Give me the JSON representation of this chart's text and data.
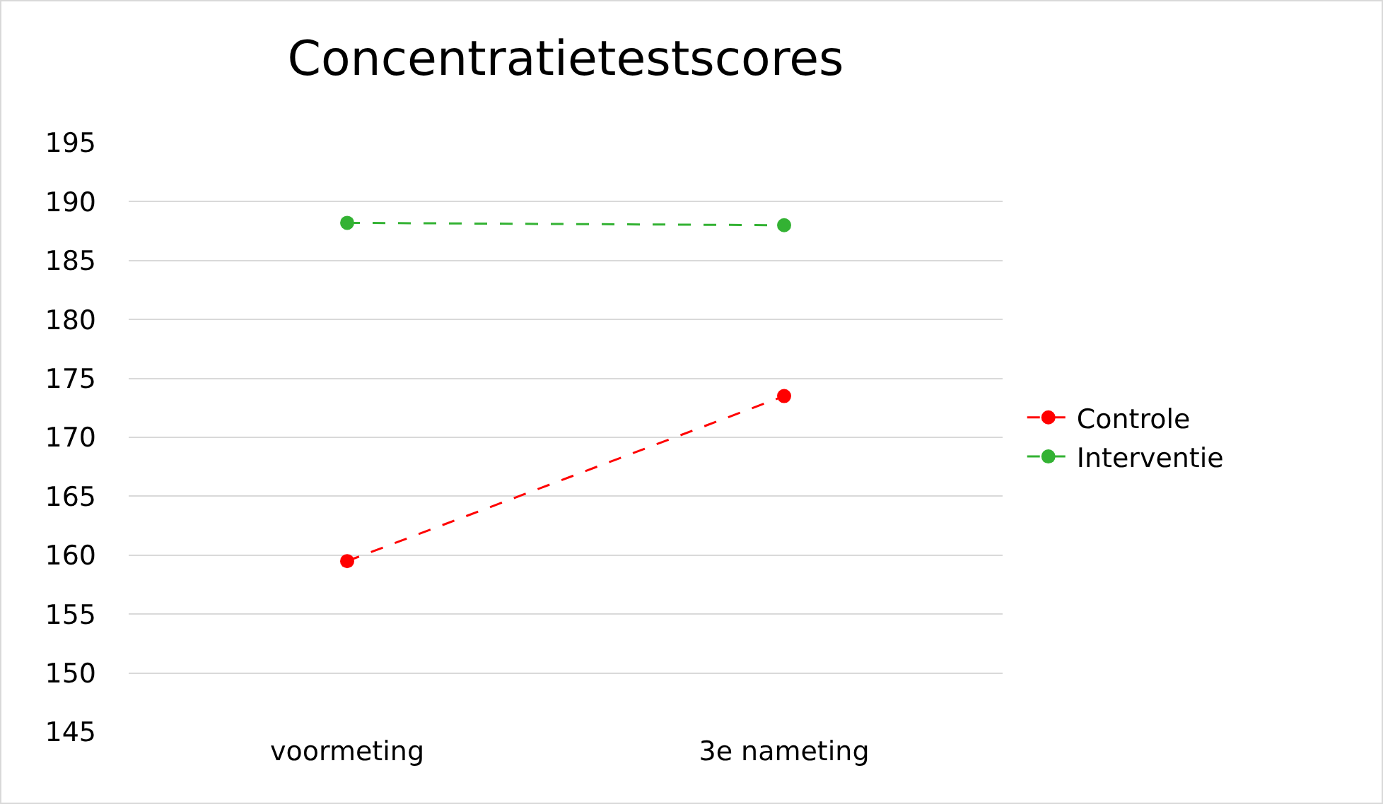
{
  "chart_data": {
    "type": "line",
    "title": "Concentratietestscores",
    "categories": [
      "voormeting",
      "3e nameting"
    ],
    "series": [
      {
        "name": "Controle",
        "color": "#ff0000",
        "values": [
          159.5,
          173.5
        ]
      },
      {
        "name": "Interventie",
        "color": "#33b233",
        "values": [
          188.2,
          188.0
        ]
      }
    ],
    "ylim": [
      145,
      195
    ],
    "yticks": [
      145,
      150,
      155,
      160,
      165,
      170,
      175,
      180,
      185,
      190,
      195
    ],
    "grid": "y",
    "legend": "right",
    "marker": "circle",
    "line_style": "dashed"
  }
}
